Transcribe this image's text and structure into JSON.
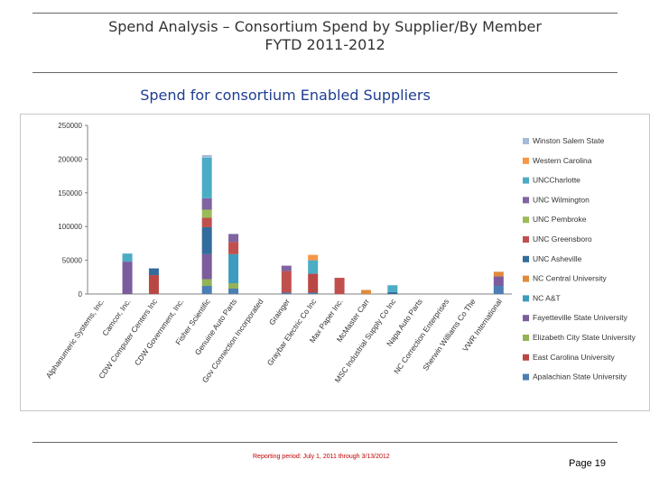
{
  "slide": {
    "title_line1": "Spend Analysis – Consortium Spend by Supplier/By Member",
    "title_line2": "FYTD 2011-2012",
    "chart_title": "Spend for consortium Enabled Suppliers",
    "footer": "Reporting period: July 1, 2011 through 3/13/2012",
    "page": "Page 19"
  },
  "chart_data": {
    "type": "bar",
    "stacked": true,
    "title": "Spend for consortium Enabled Suppliers",
    "xlabel": "",
    "ylabel": "",
    "ylim": [
      0,
      250000
    ],
    "yticks": [
      0,
      50000,
      100000,
      150000,
      200000,
      250000
    ],
    "ytick_labels": [
      "0",
      "50000",
      "100000",
      "150000",
      "200000",
      "250000"
    ],
    "grid": false,
    "legend_position": "right",
    "categories": [
      "Alphanumeric Systems, Inc.",
      "Camcor, Inc.",
      "CDW Computer Centers Inc",
      "CDW Government, Inc.",
      "Fisher Scientific",
      "Genuine Auto Parts",
      "Gov Connection Incorporated",
      "Grainger",
      "Graybar Electric Co Inc",
      "Max Paper Inc.",
      "McMaster Carr",
      "MSC Industrial Supply Co Inc",
      "Napa Auto Parts",
      "NC Correction Enterprises",
      "Sherwin Williams Co The",
      "VWR International"
    ],
    "series": [
      {
        "name": "Apalachian State University",
        "color": "#4a7eb5",
        "values": [
          0,
          0,
          0,
          0,
          12000,
          8000,
          0,
          2000,
          2000,
          0,
          0,
          0,
          0,
          0,
          0,
          12000
        ]
      },
      {
        "name": "East Carolina University",
        "color": "#b94845",
        "values": [
          0,
          0,
          28000,
          0,
          0,
          0,
          0,
          0,
          28000,
          0,
          0,
          0,
          0,
          0,
          0,
          0
        ]
      },
      {
        "name": "Elizabeth City State University",
        "color": "#94b356",
        "values": [
          0,
          0,
          0,
          0,
          10000,
          8000,
          0,
          0,
          0,
          0,
          0,
          0,
          0,
          0,
          0,
          0
        ]
      },
      {
        "name": "Fayetteville State University",
        "color": "#7b5c9c",
        "values": [
          0,
          48000,
          0,
          0,
          37000,
          0,
          0,
          0,
          0,
          0,
          0,
          0,
          0,
          0,
          0,
          14000
        ]
      },
      {
        "name": "NC A&T",
        "color": "#3c9cc0",
        "values": [
          0,
          0,
          0,
          0,
          0,
          43000,
          0,
          0,
          0,
          0,
          0,
          0,
          0,
          0,
          0,
          0
        ]
      },
      {
        "name": "NC Central University",
        "color": "#e08a3c",
        "values": [
          0,
          0,
          0,
          0,
          0,
          0,
          0,
          0,
          0,
          0,
          6000,
          0,
          0,
          0,
          0,
          7000
        ]
      },
      {
        "name": "UNC Asheville",
        "color": "#336b9c",
        "values": [
          0,
          0,
          10000,
          0,
          40000,
          0,
          0,
          0,
          0,
          0,
          0,
          3000,
          0,
          0,
          0,
          0
        ]
      },
      {
        "name": "UNC Greensboro",
        "color": "#c0504d",
        "values": [
          0,
          0,
          0,
          0,
          14000,
          18000,
          0,
          32000,
          0,
          24000,
          0,
          0,
          0,
          0,
          0,
          0
        ]
      },
      {
        "name": "UNC Pembroke",
        "color": "#9bbb59",
        "values": [
          0,
          0,
          0,
          0,
          12000,
          0,
          0,
          0,
          0,
          0,
          0,
          0,
          0,
          0,
          0,
          0
        ]
      },
      {
        "name": "UNC Wilmington",
        "color": "#8064a2",
        "values": [
          0,
          0,
          0,
          0,
          17000,
          12000,
          0,
          8000,
          0,
          0,
          0,
          0,
          0,
          0,
          0,
          0
        ]
      },
      {
        "name": "UNCCharlotte",
        "color": "#4bacc6",
        "values": [
          0,
          12000,
          0,
          0,
          60000,
          0,
          0,
          0,
          20000,
          0,
          0,
          10000,
          0,
          0,
          0,
          0
        ]
      },
      {
        "name": "Western Carolina",
        "color": "#f79646",
        "values": [
          0,
          0,
          0,
          0,
          0,
          0,
          0,
          0,
          8000,
          0,
          0,
          0,
          0,
          0,
          0,
          0
        ]
      },
      {
        "name": "Winston Salem State",
        "color": "#a5b9d9",
        "values": [
          0,
          0,
          0,
          0,
          4000,
          0,
          0,
          0,
          0,
          0,
          0,
          0,
          0,
          0,
          0,
          0
        ]
      }
    ]
  }
}
